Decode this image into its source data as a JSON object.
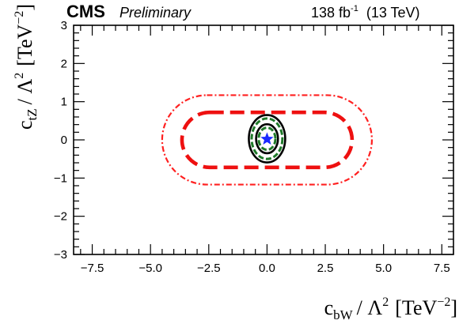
{
  "chart_data": {
    "type": "contour",
    "experiment": "CMS",
    "status": "Preliminary",
    "lumi_label": "138 fb",
    "lumi_sup": "-1",
    "energy_label": "(13 TeV)",
    "xlabel": {
      "var": "c",
      "sub": "bW",
      "mid": "/ Λ",
      "sup": "2",
      "unit_open": "[TeV",
      "unit_sup": "−2",
      "unit_close": "]"
    },
    "ylabel": {
      "var": "c",
      "sub": "tZ",
      "mid": "/ Λ",
      "sup": "2",
      "unit_open": "[TeV",
      "unit_sup": "−2",
      "unit_close": "]"
    },
    "xlim": [
      -8.3,
      8.0
    ],
    "ylim": [
      -3,
      3
    ],
    "xticks": [
      -7.5,
      -5.0,
      -2.5,
      0.0,
      2.5,
      5.0,
      7.5
    ],
    "xtick_labels": [
      "−7.5",
      "−5.0",
      "−2.5",
      "0.0",
      "2.5",
      "5.0",
      "7.5"
    ],
    "yticks": [
      -3,
      -2,
      -1,
      0,
      1,
      2,
      3
    ],
    "ytick_labels": [
      "−3",
      "−2",
      "−1",
      "0",
      "1",
      "2",
      "3"
    ],
    "best_fit": {
      "x": 0.0,
      "y": 0.02,
      "marker": "star",
      "color": "#1a2bff"
    },
    "contours": [
      {
        "id": "red-outer",
        "color": "#ff2020",
        "style": "dashdot",
        "center": [
          0.0,
          0.0
        ],
        "half_width": 4.5,
        "half_height": 1.17,
        "roundness": 0.62
      },
      {
        "id": "red-inner",
        "color": "#ee1010",
        "style": "dashed",
        "center": [
          0.0,
          0.0
        ],
        "half_width": 3.65,
        "half_height": 0.72,
        "roundness": 0.62
      },
      {
        "id": "black-outer",
        "color": "#000000",
        "style": "solid",
        "center": [
          0.0,
          0.03
        ],
        "half_width": 0.78,
        "half_height": 0.62,
        "roundness": 0.0
      },
      {
        "id": "green-outer",
        "color": "#1f7a2a",
        "style": "dashed",
        "center": [
          0.0,
          0.03
        ],
        "half_width": 0.66,
        "half_height": 0.53,
        "roundness": 0.0
      },
      {
        "id": "black-inner",
        "color": "#000000",
        "style": "solid",
        "center": [
          0.0,
          0.03
        ],
        "half_width": 0.47,
        "half_height": 0.38,
        "roundness": 0.0
      },
      {
        "id": "green-inner",
        "color": "#1f7a2a",
        "style": "dashed",
        "center": [
          0.0,
          0.03
        ],
        "half_width": 0.36,
        "half_height": 0.29,
        "roundness": 0.0
      }
    ]
  }
}
